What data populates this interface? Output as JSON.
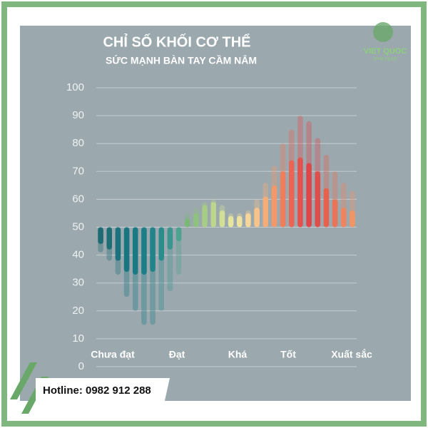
{
  "brand": {
    "name": "VIET QUOC",
    "tagline": "GYM GEAR"
  },
  "hotline": "Hotline: 0982 912 288",
  "chart_data": {
    "type": "bar",
    "title": "CHỈ SỐ KHỐI CƠ THỂ",
    "subtitle": "SỨC MẠNH BÀN TAY CẦM NẮM",
    "baseline": 50,
    "values": [
      44,
      42,
      38,
      34,
      33,
      33,
      34,
      38,
      42,
      45,
      53,
      55,
      58,
      59,
      56,
      54,
      54,
      55,
      57,
      61,
      65,
      70,
      74,
      75,
      73,
      70,
      64,
      60,
      57,
      56
    ],
    "faded_values": [
      41,
      38,
      33,
      25,
      20,
      15,
      15,
      20,
      27,
      33,
      55,
      57,
      59,
      60,
      58,
      55,
      55,
      56,
      60,
      66,
      72,
      80,
      85,
      90,
      88,
      82,
      76,
      70,
      66,
      63
    ],
    "colors": [
      "#1e6b73",
      "#1d6e77",
      "#1a737c",
      "#197680",
      "#1a7a83",
      "#1c7e86",
      "#21848a",
      "#2a8c8d",
      "#3b9690",
      "#4ea290",
      "#7ab878",
      "#8fc27e",
      "#a6cc85",
      "#bcd68d",
      "#d2df96",
      "#e6e59d",
      "#efe1a0",
      "#f4d59a",
      "#f6c38a",
      "#f5ad78",
      "#f39868",
      "#ef7f5c",
      "#ea6553",
      "#e4514e",
      "#df4549",
      "#e04e4c",
      "#e6624f",
      "#ea7457",
      "#ee855f",
      "#f19466"
    ],
    "x_labels": [
      "Chưa đạt",
      "Đạt",
      "Khá",
      "Tốt",
      "Xuất sắc"
    ],
    "ylim": [
      0,
      100
    ],
    "yticks": [
      0,
      10,
      20,
      30,
      40,
      50,
      60,
      70,
      80,
      90,
      100
    ],
    "grid": true
  }
}
